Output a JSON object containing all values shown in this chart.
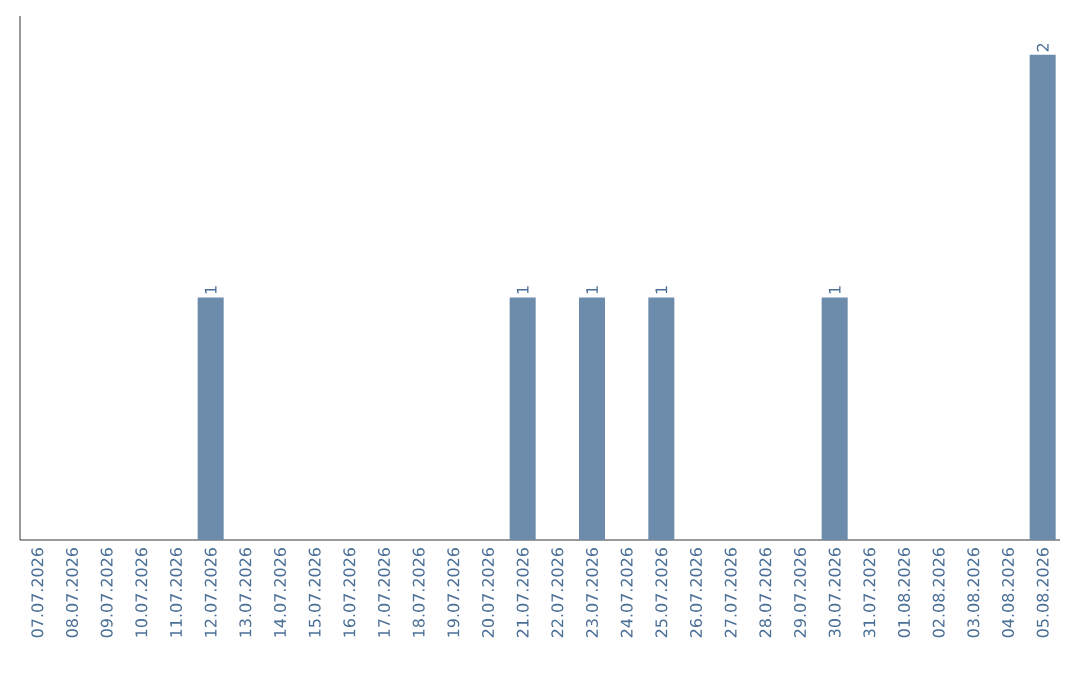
{
  "chart_data": {
    "type": "bar",
    "categories": [
      "07.07.2026",
      "08.07.2026",
      "09.07.2026",
      "10.07.2026",
      "11.07.2026",
      "12.07.2026",
      "13.07.2026",
      "14.07.2026",
      "15.07.2026",
      "16.07.2026",
      "17.07.2026",
      "18.07.2026",
      "19.07.2026",
      "20.07.2026",
      "21.07.2026",
      "22.07.2026",
      "23.07.2026",
      "24.07.2026",
      "25.07.2026",
      "26.07.2026",
      "27.07.2026",
      "28.07.2026",
      "29.07.2026",
      "30.07.2026",
      "31.07.2026",
      "01.08.2026",
      "02.08.2026",
      "03.08.2026",
      "04.08.2026",
      "05.08.2026"
    ],
    "values": [
      0,
      0,
      0,
      0,
      0,
      1,
      0,
      0,
      0,
      0,
      0,
      0,
      0,
      0,
      1,
      0,
      1,
      0,
      1,
      0,
      0,
      0,
      0,
      1,
      0,
      0,
      0,
      0,
      0,
      2
    ],
    "value_labels": [
      null,
      null,
      null,
      null,
      null,
      "1",
      null,
      null,
      null,
      null,
      null,
      null,
      null,
      null,
      "1",
      null,
      "1",
      null,
      "1",
      null,
      null,
      null,
      null,
      "1",
      null,
      null,
      null,
      null,
      null,
      "2"
    ],
    "color": "#6d8cab",
    "tick_labels": "x",
    "grid": false
  }
}
